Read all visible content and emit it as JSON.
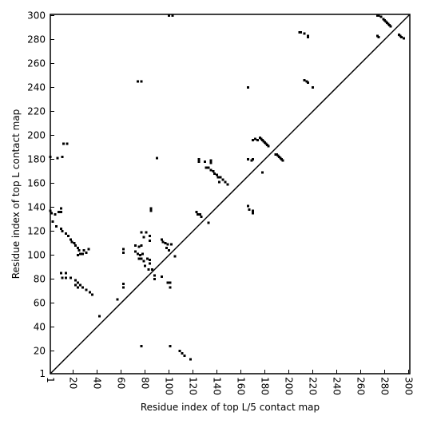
{
  "chart_data": {
    "type": "scatter",
    "x_label": "Residue index of top L/5 contact map",
    "y_label": "Residue index of top L contact map",
    "xlim": [
      1,
      301
    ],
    "ylim": [
      1,
      301
    ],
    "xticks": [
      1,
      20,
      40,
      60,
      80,
      100,
      120,
      140,
      160,
      180,
      200,
      220,
      240,
      260,
      280,
      300
    ],
    "yticks": [
      1,
      20,
      40,
      60,
      80,
      100,
      120,
      140,
      160,
      180,
      200,
      220,
      240,
      260,
      280,
      300
    ],
    "color": "#000000",
    "x": [
      274,
      275,
      277,
      279,
      280,
      281,
      282,
      283,
      284,
      285,
      274,
      275,
      292,
      293,
      294,
      296,
      209,
      210,
      213,
      216,
      216,
      213,
      215,
      216,
      220,
      166,
      176,
      177,
      178,
      179,
      180,
      181,
      182,
      183,
      170,
      172,
      174,
      166,
      169,
      170,
      178,
      189,
      190,
      191,
      192,
      193,
      194,
      195,
      125,
      125,
      130,
      135,
      135,
      131,
      133,
      135,
      137,
      138,
      140,
      141,
      143,
      145,
      147,
      149,
      142,
      123,
      124,
      126,
      127,
      133,
      166,
      167,
      170,
      170,
      1,
      7,
      11,
      12,
      15,
      1,
      2,
      5,
      8,
      10,
      10,
      3,
      6,
      10,
      11,
      14,
      16,
      18,
      19,
      21,
      22,
      24,
      25,
      26,
      29,
      31,
      33,
      24,
      28,
      10,
      14,
      11,
      14,
      18,
      22,
      24,
      26,
      28,
      31,
      34,
      36,
      22,
      24,
      62,
      62,
      62,
      62,
      57,
      42,
      72,
      75,
      77,
      72,
      74,
      76,
      78,
      75,
      77,
      79,
      82,
      84,
      84,
      80,
      83,
      86,
      77,
      81,
      84,
      79,
      84,
      85,
      85,
      94,
      95,
      97,
      99,
      102,
      98,
      100,
      88,
      88,
      94,
      99,
      101,
      101,
      105,
      77,
      74,
      100,
      103,
      90,
      77,
      109,
      111,
      113,
      118,
      101
    ],
    "values": [
      300,
      300,
      299,
      297,
      296,
      295,
      294,
      293,
      292,
      291,
      283,
      282,
      284,
      283,
      282,
      281,
      286,
      286,
      285,
      283,
      282,
      246,
      245,
      244,
      240,
      240,
      198,
      197,
      196,
      195,
      194,
      193,
      192,
      191,
      196,
      197,
      196,
      180,
      179,
      180,
      169,
      184,
      184,
      183,
      182,
      181,
      180,
      179,
      180,
      178,
      178,
      179,
      177,
      173,
      173,
      171,
      170,
      168,
      167,
      165,
      165,
      163,
      161,
      159,
      161,
      136,
      134,
      134,
      132,
      127,
      141,
      138,
      137,
      135,
      182,
      181,
      182,
      193,
      193,
      137,
      135,
      134,
      136,
      139,
      136,
      128,
      124,
      122,
      120,
      118,
      116,
      113,
      111,
      110,
      108,
      106,
      104,
      101,
      104,
      102,
      105,
      100,
      101,
      85,
      85,
      81,
      81,
      81,
      79,
      77,
      75,
      73,
      71,
      69,
      67,
      75,
      73,
      105,
      102,
      76,
      73,
      63,
      49,
      108,
      107,
      108,
      103,
      101,
      100,
      101,
      97,
      97,
      95,
      97,
      96,
      93,
      91,
      88,
      88,
      119,
      119,
      116,
      115,
      112,
      139,
      137,
      113,
      111,
      110,
      109,
      109,
      106,
      104,
      83,
      80,
      82,
      77,
      77,
      73,
      99,
      245,
      245,
      300,
      300,
      181,
      24,
      20,
      18,
      16,
      13,
      24
    ]
  }
}
